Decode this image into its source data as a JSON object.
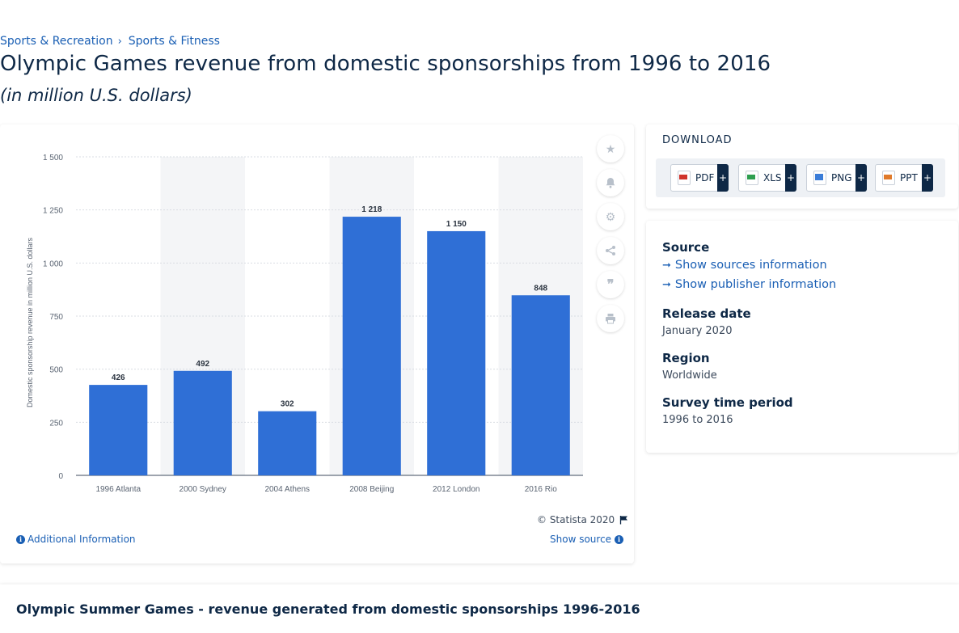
{
  "breadcrumb": {
    "items": [
      "Sports & Recreation",
      "Sports & Fitness"
    ],
    "separator": "›"
  },
  "page_title": "Olympic Games revenue from domestic sponsorships from 1996 to 2016",
  "page_subtitle": "(in million U.S. dollars)",
  "chart_data": {
    "type": "bar",
    "categories": [
      "1996 Atlanta",
      "2000 Sydney",
      "2004 Athens",
      "2008 Beijing",
      "2012 London",
      "2016 Rio"
    ],
    "values": [
      426,
      492,
      302,
      1218,
      1150,
      848
    ],
    "value_labels": [
      "426",
      "492",
      "302",
      "1 218",
      "1 150",
      "848"
    ],
    "ylabel": "Domestic sponsorship revenue in million U.S. dollars",
    "ylim": [
      0,
      1500
    ],
    "yticks": [
      0,
      250,
      500,
      750,
      1000,
      1250,
      1500
    ],
    "ytick_labels": [
      "0",
      "250",
      "500",
      "750",
      "1 000",
      "1 250",
      "1 500"
    ],
    "bar_color": "#2f6fd6",
    "band_color": "#f4f5f7",
    "grid": true
  },
  "chart_footer": {
    "credit": "© Statista 2020",
    "additional_info": "Additional Information",
    "show_source": "Show source"
  },
  "tools": [
    "star-icon",
    "bell-icon",
    "gear-icon",
    "share-icon",
    "quote-icon",
    "print-icon"
  ],
  "download": {
    "title": "DOWNLOAD",
    "buttons": [
      {
        "label": "PDF",
        "color": "#d0342c"
      },
      {
        "label": "XLS",
        "color": "#2e9e4f"
      },
      {
        "label": "PNG",
        "color": "#3b7dd8"
      },
      {
        "label": "PPT",
        "color": "#e07a2a"
      }
    ],
    "plus": "+"
  },
  "info": {
    "source_heading": "Source",
    "show_sources": "Show sources information",
    "show_publisher": "Show publisher information",
    "release_heading": "Release date",
    "release_value": "January 2020",
    "region_heading": "Region",
    "region_value": "Worldwide",
    "survey_heading": "Survey time period",
    "survey_value": "1996 to 2016"
  },
  "bottom": {
    "title": "Olympic Summer Games - revenue generated from domestic sponsorships 1996-2016"
  }
}
